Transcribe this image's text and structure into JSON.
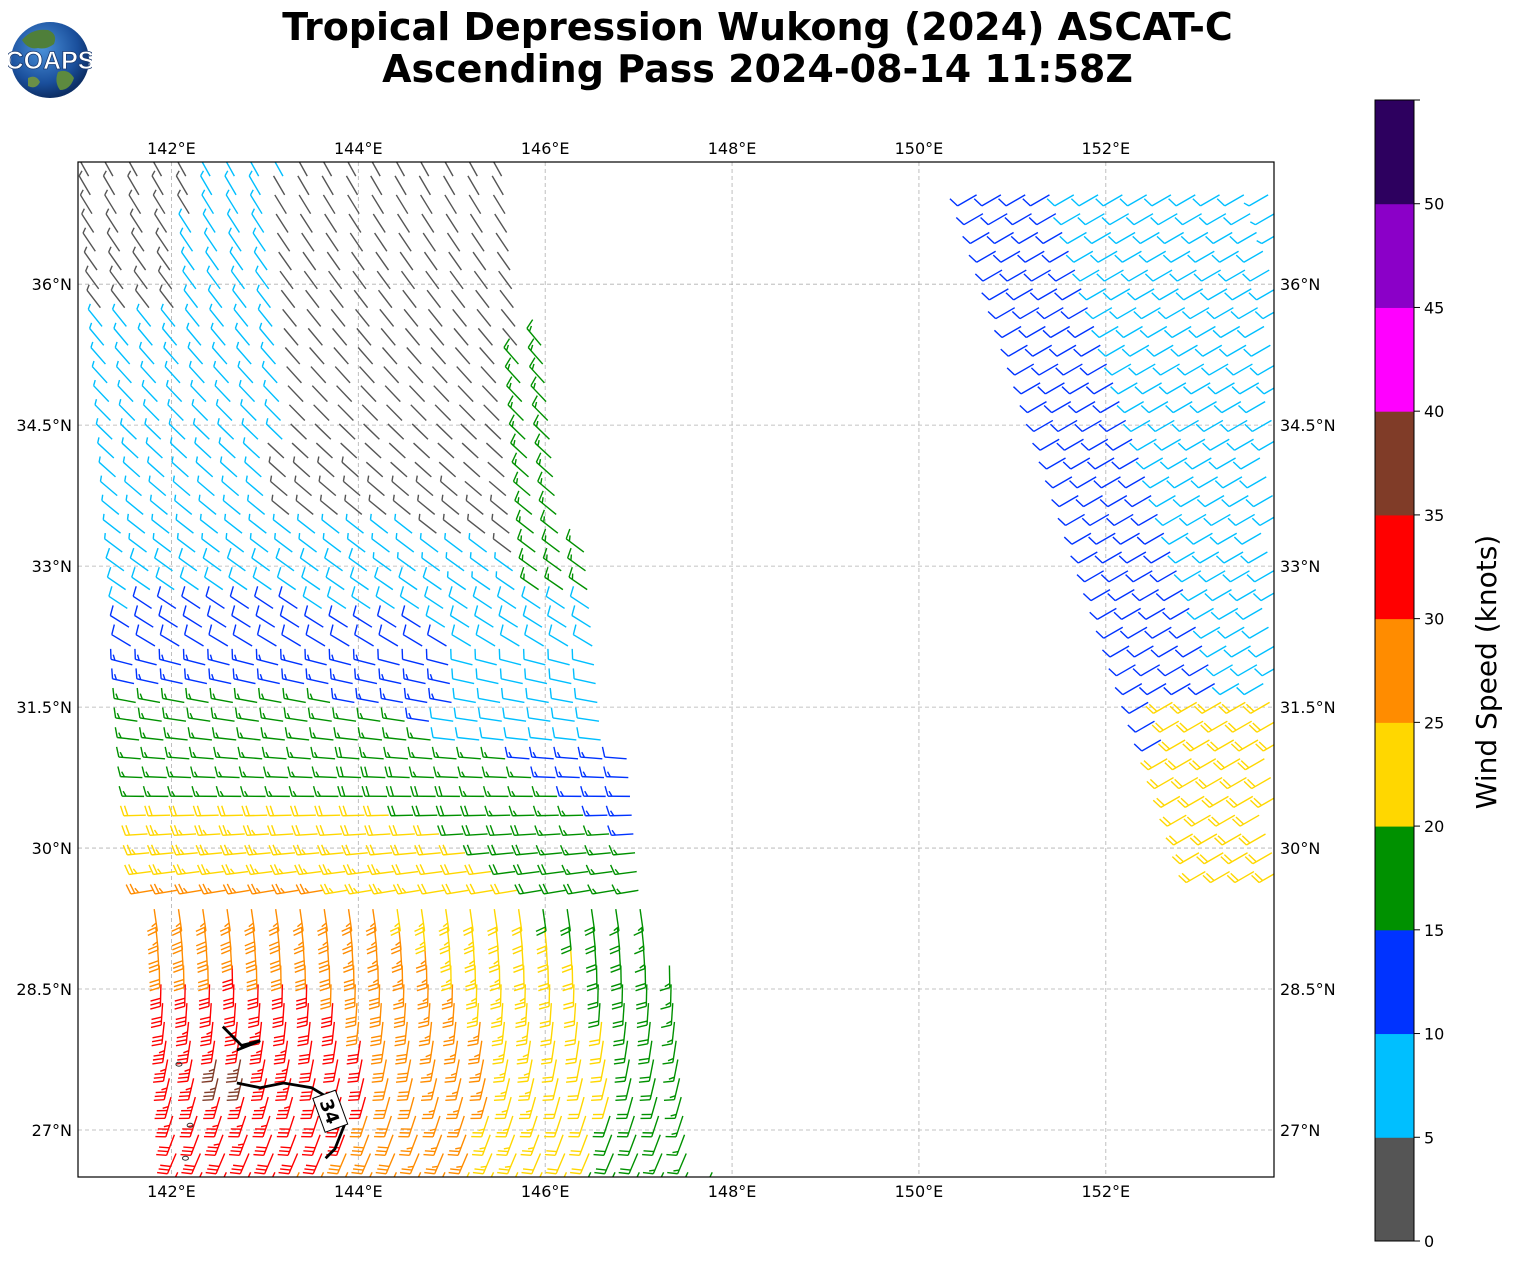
{
  "title_line1": "Tropical Depression Wukong (2024) ASCAT-C",
  "title_line2": "Ascending Pass 2024-08-14 11:58Z",
  "logo_text": "COAPS",
  "map": {
    "lon_range": [
      141.0,
      153.8
    ],
    "lat_range": [
      26.5,
      37.3
    ],
    "lon_ticks": [
      {
        "value": 142,
        "label": "142°E"
      },
      {
        "value": 144,
        "label": "144°E"
      },
      {
        "value": 146,
        "label": "146°E"
      },
      {
        "value": 148,
        "label": "148°E"
      },
      {
        "value": 150,
        "label": "150°E"
      },
      {
        "value": 152,
        "label": "152°E"
      }
    ],
    "lat_ticks": [
      {
        "value": 36,
        "label": "36°N"
      },
      {
        "value": 34.5,
        "label": "34.5°N"
      },
      {
        "value": 33,
        "label": "33°N"
      },
      {
        "value": 31.5,
        "label": "31.5°N"
      },
      {
        "value": 30,
        "label": "30°N"
      },
      {
        "value": 28.5,
        "label": "28.5°N"
      },
      {
        "value": 27,
        "label": "27°N"
      }
    ],
    "grid": true,
    "contour_label": "34",
    "contour_34kt": [
      [
        142.55,
        28.1
      ],
      [
        142.75,
        27.9
      ],
      [
        142.95,
        27.95
      ],
      [
        142.7,
        27.85
      ]
    ],
    "contour_34kt_south": [
      [
        142.7,
        27.5
      ],
      [
        142.95,
        27.45
      ],
      [
        143.2,
        27.5
      ],
      [
        143.5,
        27.45
      ],
      [
        143.75,
        27.3
      ],
      [
        143.85,
        27.05
      ],
      [
        143.75,
        26.8
      ],
      [
        143.65,
        26.7
      ]
    ],
    "islands": [
      [
        142.2,
        27.05
      ],
      [
        142.15,
        26.7
      ],
      [
        142.08,
        27.7
      ]
    ]
  },
  "colorbar": {
    "label": "Wind Speed (knots)",
    "tick_labels": [
      "0",
      "5",
      "10",
      "15",
      "20",
      "25",
      "30",
      "35",
      "40",
      "45",
      "50"
    ],
    "bins": [
      {
        "min": 0,
        "max": 5,
        "color": "#555555"
      },
      {
        "min": 5,
        "max": 10,
        "color": "#00bfff"
      },
      {
        "min": 10,
        "max": 15,
        "color": "#0033ff"
      },
      {
        "min": 15,
        "max": 20,
        "color": "#009100"
      },
      {
        "min": 20,
        "max": 25,
        "color": "#ffd700"
      },
      {
        "min": 25,
        "max": 30,
        "color": "#ff8c00"
      },
      {
        "min": 30,
        "max": 35,
        "color": "#ff0000"
      },
      {
        "min": 35,
        "max": 40,
        "color": "#803c28"
      },
      {
        "min": 40,
        "max": 45,
        "color": "#ff00ff"
      },
      {
        "min": 45,
        "max": 50,
        "color": "#8b00c8"
      },
      {
        "min": 50,
        "max": 55,
        "color": "#2d005f"
      }
    ]
  }
}
